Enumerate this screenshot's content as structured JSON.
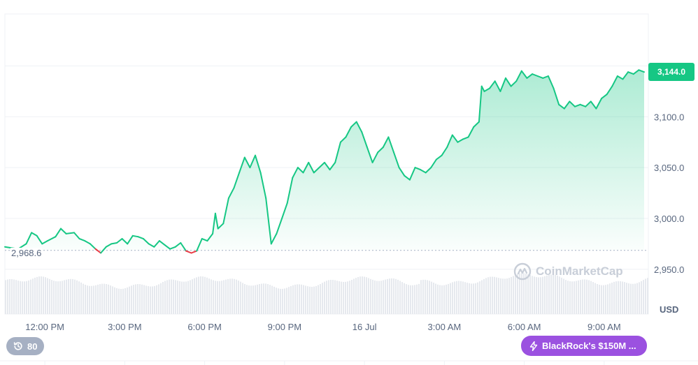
{
  "chart_data": {
    "type": "area",
    "title": "",
    "xlabel": "",
    "ylabel": "",
    "currency_label": "USD",
    "x_ticks": [
      "12:00 PM",
      "3:00 PM",
      "6:00 PM",
      "9:00 PM",
      "16 Jul",
      "3:00 AM",
      "6:00 AM",
      "9:00 AM"
    ],
    "y_ticks": [
      2950.0,
      3000.0,
      3050.0,
      3100.0
    ],
    "y_tick_labels": [
      "2,950.0",
      "3,000.0",
      "3,050.0",
      "3,100.0"
    ],
    "ylim": [
      2900,
      3200
    ],
    "xlim_hours": [
      0,
      24
    ],
    "reference_price": 2968.6,
    "reference_label": "2,968.6",
    "last_price": 3144.0,
    "last_price_label": "3,144.0",
    "series": [
      {
        "points": [
          [
            0.0,
            2972
          ],
          [
            0.5,
            2970
          ],
          [
            0.8,
            2975
          ],
          [
            1.0,
            2986
          ],
          [
            1.2,
            2983
          ],
          [
            1.4,
            2975
          ],
          [
            1.6,
            2978
          ],
          [
            1.9,
            2982
          ],
          [
            2.1,
            2990
          ],
          [
            2.3,
            2985
          ],
          [
            2.6,
            2986
          ],
          [
            2.8,
            2980
          ],
          [
            3.0,
            2978
          ],
          [
            3.2,
            2975
          ],
          [
            3.4,
            2970
          ],
          [
            3.6,
            2966
          ],
          [
            3.8,
            2972
          ],
          [
            4.0,
            2975
          ],
          [
            4.2,
            2976
          ],
          [
            4.4,
            2980
          ],
          [
            4.6,
            2975
          ],
          [
            4.8,
            2983
          ],
          [
            5.0,
            2982
          ],
          [
            5.2,
            2980
          ],
          [
            5.4,
            2975
          ],
          [
            5.6,
            2972
          ],
          [
            5.8,
            2978
          ],
          [
            6.0,
            2974
          ],
          [
            6.2,
            2970
          ],
          [
            6.4,
            2972
          ],
          [
            6.6,
            2976
          ],
          [
            6.8,
            2968
          ],
          [
            7.0,
            2966
          ],
          [
            7.2,
            2968
          ],
          [
            7.4,
            2980
          ],
          [
            7.6,
            2978
          ],
          [
            7.8,
            2985
          ],
          [
            7.9,
            3005
          ],
          [
            8.0,
            2990
          ],
          [
            8.2,
            2995
          ],
          [
            8.4,
            3020
          ],
          [
            8.6,
            3030
          ],
          [
            8.8,
            3045
          ],
          [
            9.0,
            3060
          ],
          [
            9.2,
            3050
          ],
          [
            9.4,
            3062
          ],
          [
            9.6,
            3045
          ],
          [
            9.8,
            3020
          ],
          [
            10.0,
            2975
          ],
          [
            10.2,
            2985
          ],
          [
            10.4,
            3000
          ],
          [
            10.6,
            3015
          ],
          [
            10.8,
            3040
          ],
          [
            11.0,
            3050
          ],
          [
            11.2,
            3045
          ],
          [
            11.4,
            3055
          ],
          [
            11.6,
            3045
          ],
          [
            11.8,
            3050
          ],
          [
            12.0,
            3055
          ],
          [
            12.2,
            3048
          ],
          [
            12.4,
            3055
          ],
          [
            12.6,
            3075
          ],
          [
            12.8,
            3080
          ],
          [
            13.0,
            3090
          ],
          [
            13.2,
            3095
          ],
          [
            13.4,
            3085
          ],
          [
            13.6,
            3070
          ],
          [
            13.8,
            3055
          ],
          [
            14.0,
            3065
          ],
          [
            14.2,
            3070
          ],
          [
            14.4,
            3080
          ],
          [
            14.6,
            3065
          ],
          [
            14.8,
            3050
          ],
          [
            15.0,
            3042
          ],
          [
            15.2,
            3038
          ],
          [
            15.4,
            3050
          ],
          [
            15.6,
            3048
          ],
          [
            15.8,
            3045
          ],
          [
            16.0,
            3050
          ],
          [
            16.2,
            3058
          ],
          [
            16.4,
            3062
          ],
          [
            16.6,
            3070
          ],
          [
            16.8,
            3082
          ],
          [
            17.0,
            3075
          ],
          [
            17.2,
            3078
          ],
          [
            17.4,
            3080
          ],
          [
            17.6,
            3090
          ],
          [
            17.8,
            3095
          ],
          [
            17.9,
            3130
          ],
          [
            18.0,
            3125
          ],
          [
            18.2,
            3128
          ],
          [
            18.4,
            3135
          ],
          [
            18.6,
            3125
          ],
          [
            18.8,
            3138
          ],
          [
            19.0,
            3130
          ],
          [
            19.2,
            3135
          ],
          [
            19.4,
            3145
          ],
          [
            19.6,
            3138
          ],
          [
            19.8,
            3142
          ],
          [
            20.0,
            3140
          ],
          [
            20.2,
            3138
          ],
          [
            20.4,
            3140
          ],
          [
            20.6,
            3128
          ],
          [
            20.8,
            3112
          ],
          [
            21.0,
            3108
          ],
          [
            21.2,
            3115
          ],
          [
            21.4,
            3110
          ],
          [
            21.6,
            3112
          ],
          [
            21.8,
            3110
          ],
          [
            22.0,
            3115
          ],
          [
            22.2,
            3108
          ],
          [
            22.4,
            3118
          ],
          [
            22.6,
            3122
          ],
          [
            22.8,
            3130
          ],
          [
            23.0,
            3140
          ],
          [
            23.2,
            3137
          ],
          [
            23.4,
            3144
          ],
          [
            23.6,
            3142
          ],
          [
            23.8,
            3146
          ],
          [
            24.0,
            3144
          ]
        ]
      }
    ],
    "grid": true
  },
  "watermark": "CoinMarketCap",
  "badges": {
    "history_count": "80",
    "news_text": "BlackRock's $150M ..."
  },
  "colors": {
    "up": "#16c784",
    "down": "#ea3943",
    "news": "#9b51e0",
    "grid": "#eff2f5"
  }
}
